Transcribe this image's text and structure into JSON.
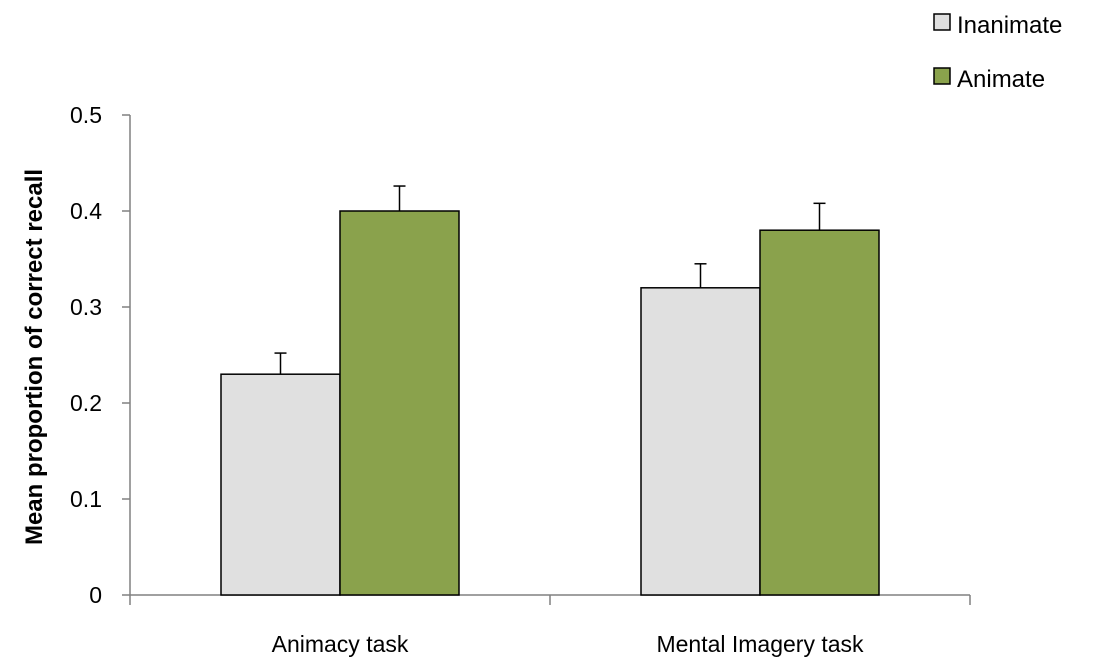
{
  "chart_data": {
    "type": "bar",
    "categories": [
      "Animacy task",
      "Mental Imagery task"
    ],
    "series": [
      {
        "name": "Inanimate",
        "values": [
          0.23,
          0.32
        ],
        "error": [
          0.022,
          0.025
        ],
        "color": "#e0e0e0"
      },
      {
        "name": "Animate",
        "values": [
          0.4,
          0.38
        ],
        "error": [
          0.026,
          0.028
        ],
        "color": "#8aa24c"
      }
    ],
    "title": "",
    "xlabel": "",
    "ylabel": "Mean proportion of correct recall",
    "ylim": [
      0,
      0.5
    ],
    "yticks": [
      "0",
      "0.1",
      "0.2",
      "0.3",
      "0.4",
      "0.5"
    ],
    "ytick_values": [
      0,
      0.1,
      0.2,
      0.3,
      0.4,
      0.5
    ],
    "grid": false,
    "legend_position": "top-right",
    "bar_edge_color": "#000000",
    "axis_color": "#808080"
  }
}
